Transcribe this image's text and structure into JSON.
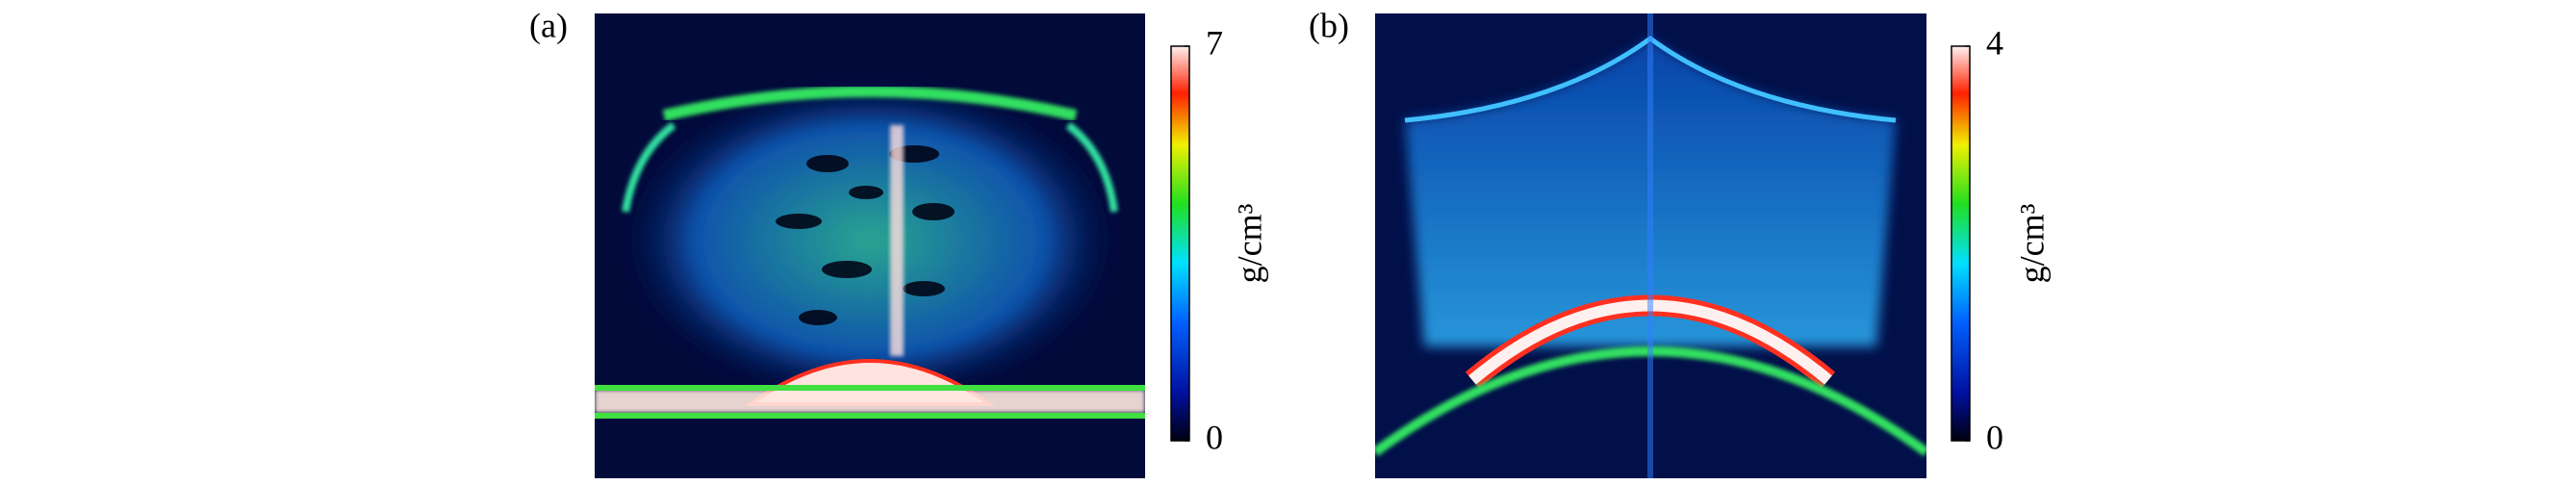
{
  "panels": [
    {
      "label": "(a)",
      "colorbar": {
        "label": "g/cm³",
        "clim": [
          0,
          7
        ],
        "ticks": [
          0,
          7
        ]
      }
    },
    {
      "label": "(b)",
      "colorbar": {
        "label": "g/cm³",
        "clim": [
          0,
          4
        ],
        "ticks": [
          0,
          4
        ]
      }
    }
  ]
}
